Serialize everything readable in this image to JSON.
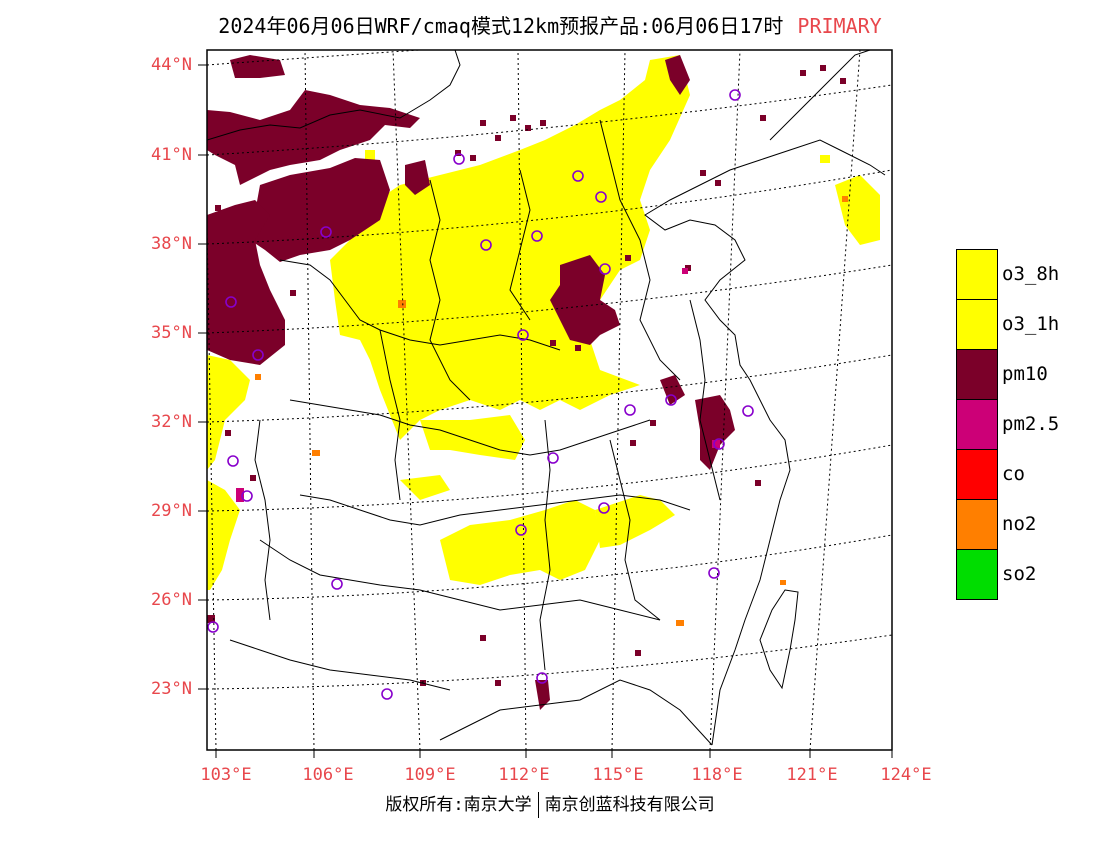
{
  "title": {
    "main": "2024年06月06日WRF/cmaq模式12km预报产品:06月06日17时",
    "tag": "PRIMARY"
  },
  "axes": {
    "lat_labels": [
      "44°N",
      "41°N",
      "38°N",
      "35°N",
      "32°N",
      "29°N",
      "26°N",
      "23°N"
    ],
    "lon_labels": [
      "103°E",
      "106°E",
      "109°E",
      "112°E",
      "115°E",
      "118°E",
      "121°E",
      "124°E"
    ]
  },
  "legend": [
    {
      "label": "o3_8h",
      "color": "#ffff00"
    },
    {
      "label": "o3_1h",
      "color": "#ffff00"
    },
    {
      "label": "pm10",
      "color": "#7b0029"
    },
    {
      "label": "pm2.5",
      "color": "#cc0077"
    },
    {
      "label": "co",
      "color": "#ff0000"
    },
    {
      "label": "no2",
      "color": "#ff7f00"
    },
    {
      "label": "so2",
      "color": "#00dd00"
    }
  ],
  "footer": {
    "left": "版权所有:南京大学",
    "right": "南京创蓝科技有限公司"
  },
  "colors": {
    "label_red": "#e8474c",
    "o3": "#ffff00",
    "pm10": "#7b0029",
    "pm25": "#cc0077",
    "no2": "#ff7f00",
    "station_ring": "#8800cc"
  }
}
